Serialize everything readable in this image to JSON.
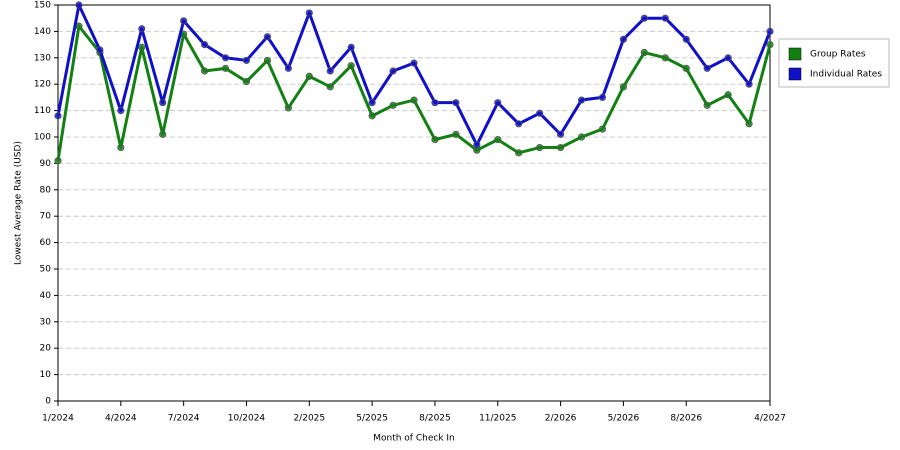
{
  "chart_data": {
    "type": "line",
    "x_label": "Month of Check In",
    "y_label": "Lowest Average Rate (USD)",
    "categories": [
      "1/2024",
      null,
      null,
      "4/2024",
      null,
      null,
      "7/2024",
      null,
      null,
      "10/2024",
      null,
      null,
      "2/2025",
      null,
      null,
      "5/2025",
      null,
      null,
      "8/2025",
      null,
      null,
      "11/2025",
      null,
      null,
      "2/2026",
      null,
      null,
      "5/2026",
      null,
      null,
      "8/2026",
      null,
      null,
      null,
      "4/2027"
    ],
    "series": [
      {
        "name": "Group Rates",
        "color": "#138013",
        "values": [
          91,
          142,
          132,
          96,
          134,
          101,
          139,
          125,
          126,
          121,
          129,
          111,
          123,
          119,
          127,
          108,
          112,
          114,
          99,
          101,
          95,
          99,
          94,
          96,
          96,
          100,
          103,
          119,
          132,
          130,
          126,
          112,
          116,
          105,
          135
        ]
      },
      {
        "name": "Individual Rates",
        "color": "#1010c8",
        "values": [
          108,
          150,
          133,
          110,
          141,
          113,
          144,
          135,
          130,
          129,
          138,
          126,
          147,
          125,
          134,
          113,
          125,
          128,
          113,
          113,
          97,
          113,
          105,
          109,
          101,
          114,
          115,
          137,
          145,
          145,
          137,
          126,
          130,
          120,
          140
        ]
      }
    ],
    "ylim": [
      0,
      150
    ],
    "yticks": [
      0,
      10,
      20,
      30,
      40,
      50,
      60,
      70,
      80,
      90,
      100,
      110,
      120,
      130,
      140,
      150
    ],
    "grid": true,
    "legend": "right"
  }
}
